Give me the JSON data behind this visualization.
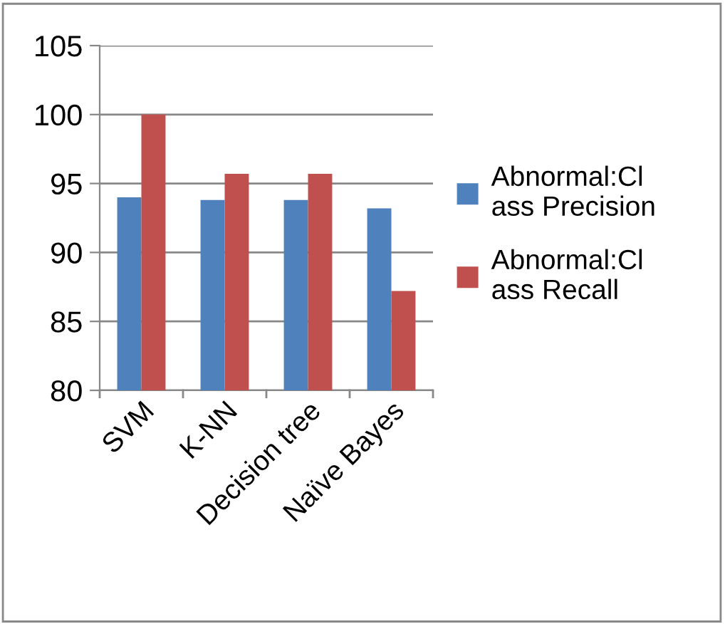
{
  "chart_data": {
    "type": "bar",
    "categories": [
      "SVM",
      "K-NN",
      "Decision tree",
      "Naïve Bayes"
    ],
    "series": [
      {
        "name": "Abnormal:Class Precision",
        "color": "#4f81bd",
        "values": [
          94.0,
          93.8,
          93.8,
          93.2
        ]
      },
      {
        "name": "Abnormal:Class Recall",
        "color": "#c0504d",
        "values": [
          100,
          95.7,
          95.7,
          87.2
        ]
      }
    ],
    "ylim": [
      80,
      105
    ],
    "yticks": [
      80,
      85,
      90,
      95,
      100,
      105
    ],
    "grid": "y",
    "legend": "right"
  }
}
